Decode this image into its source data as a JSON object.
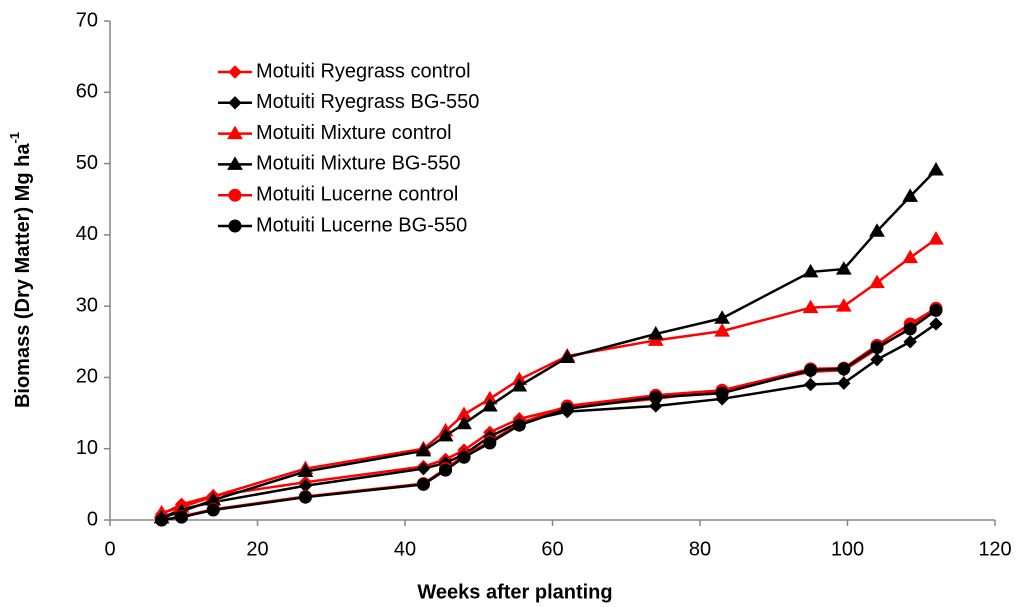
{
  "chart_data": {
    "type": "line",
    "xlabel": "Weeks after planting",
    "ylabel": "Biomass  (Dry Matter)  Mg  ha",
    "ylabel_superscript": "-1",
    "x": [
      7,
      9.7,
      14,
      26.5,
      42.5,
      45.5,
      48,
      51.5,
      55.5,
      62,
      74,
      83,
      95,
      99.5,
      104,
      108.5,
      112
    ],
    "series": [
      {
        "name": "Motuiti Ryegrass control",
        "color": "#ff0000",
        "marker": "diamond",
        "values": [
          0.8,
          2.2,
          3.4,
          5.3,
          7.5,
          8.5,
          9.8,
          12.3,
          14.2,
          15.8,
          17,
          18.2,
          20.8,
          21,
          24,
          27,
          29.5
        ]
      },
      {
        "name": "Motuiti Ryegrass BG-550",
        "color": "#000000",
        "marker": "diamond",
        "values": [
          0.3,
          1.5,
          2.5,
          4.8,
          7.2,
          8,
          9.2,
          11.7,
          13.7,
          15.2,
          16,
          17,
          19,
          19.2,
          22.5,
          25,
          27.5
        ]
      },
      {
        "name": "Motuiti Mixture control",
        "color": "#ff0000",
        "marker": "triangle",
        "values": [
          1,
          1.8,
          3.3,
          7.2,
          10,
          12.5,
          14.8,
          17,
          19.7,
          23,
          25.2,
          26.5,
          29.8,
          30,
          33.3,
          36.8,
          39.4
        ]
      },
      {
        "name": "Motuiti Mixture BG-550",
        "color": "#000000",
        "marker": "triangle",
        "values": [
          0.3,
          1.2,
          2.8,
          6.8,
          9.7,
          11.8,
          13.5,
          16,
          18.8,
          22.8,
          26.1,
          28.3,
          34.8,
          35.2,
          40.5,
          45.4,
          49.1
        ]
      },
      {
        "name": "Motuiti Lucerne control",
        "color": "#ff0000",
        "marker": "circle",
        "values": [
          0,
          0.5,
          1.5,
          3.3,
          5.1,
          7.2,
          9,
          11,
          13.5,
          16,
          17.5,
          18.2,
          21.2,
          21.3,
          24.5,
          27.5,
          29.7
        ]
      },
      {
        "name": "Motuiti Lucerne BG-550",
        "color": "#000000",
        "marker": "circle",
        "values": [
          0,
          0.4,
          1.4,
          3.2,
          5,
          7,
          8.8,
          10.8,
          13.3,
          15.6,
          17.2,
          17.8,
          21,
          21.2,
          24.2,
          26.8,
          29.4
        ]
      }
    ],
    "xlim": [
      0,
      120
    ],
    "xticks": [
      0,
      20,
      40,
      60,
      80,
      100,
      120
    ],
    "ylim": [
      0,
      70
    ],
    "yticks": [
      0,
      10,
      20,
      30,
      40,
      50,
      60,
      70
    ],
    "legend": "upper-left"
  }
}
